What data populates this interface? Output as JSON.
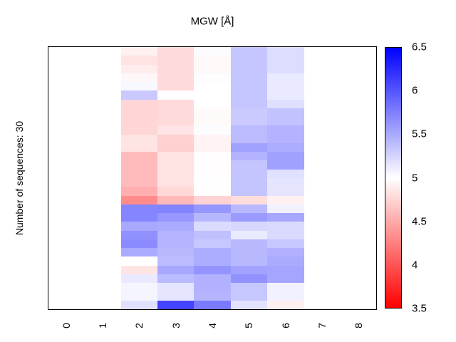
{
  "title": "MGW [Å]",
  "y_axis_label": "Number of sequences: 30",
  "x_axis": {
    "tick_labels": [
      "0",
      "1",
      "2",
      "3",
      "4",
      "5",
      "6",
      "7",
      "8"
    ]
  },
  "colorbar": {
    "tick_labels": [
      "6.5",
      "6",
      "5.5",
      "5",
      "4.5",
      "4",
      "3.5"
    ],
    "top_color": "#0000ff",
    "mid_color": "#ffffff",
    "bottom_color": "#ff0000",
    "vmax": 6.5,
    "vmin": 3.5
  },
  "chart_data": {
    "type": "heatmap",
    "title": "MGW [Å]",
    "ylabel": "Number of sequences: 30",
    "x_categories": [
      "0",
      "1",
      "2",
      "3",
      "4",
      "5",
      "6",
      "7",
      "8"
    ],
    "n_rows": 30,
    "value_scale": {
      "min": 3.5,
      "mid": 5.0,
      "max": 6.5
    },
    "colormap": "red-white-blue",
    "legend_position": "right-colorbar",
    "grid": false,
    "values": [
      [
        null,
        null,
        4.92,
        4.78,
        5.02,
        5.34,
        5.2,
        null,
        null
      ],
      [
        null,
        null,
        4.83,
        4.78,
        4.96,
        5.34,
        5.2,
        null,
        null
      ],
      [
        null,
        null,
        4.89,
        4.78,
        4.96,
        5.34,
        5.2,
        null,
        null
      ],
      [
        null,
        null,
        4.95,
        4.78,
        5.01,
        5.34,
        5.13,
        null,
        null
      ],
      [
        null,
        null,
        5.04,
        4.78,
        5.0,
        5.34,
        5.13,
        null,
        null
      ],
      [
        null,
        null,
        5.32,
        4.99,
        5.0,
        5.34,
        5.13,
        null,
        null
      ],
      [
        null,
        null,
        4.75,
        4.78,
        5.0,
        5.34,
        5.19,
        null,
        null
      ],
      [
        null,
        null,
        4.75,
        4.78,
        4.97,
        5.31,
        5.36,
        null,
        null
      ],
      [
        null,
        null,
        4.75,
        4.78,
        4.97,
        5.31,
        5.36,
        null,
        null
      ],
      [
        null,
        null,
        4.76,
        4.85,
        5.02,
        5.4,
        5.45,
        null,
        null
      ],
      [
        null,
        null,
        4.84,
        4.73,
        4.93,
        5.4,
        5.45,
        null,
        null
      ],
      [
        null,
        null,
        4.84,
        4.71,
        4.93,
        5.56,
        5.48,
        null,
        null
      ],
      [
        null,
        null,
        4.6,
        4.83,
        4.99,
        5.45,
        5.56,
        null,
        null
      ],
      [
        null,
        null,
        4.6,
        4.83,
        4.99,
        5.35,
        5.56,
        null,
        null
      ],
      [
        null,
        null,
        4.6,
        4.83,
        4.99,
        5.35,
        5.18,
        null,
        null
      ],
      [
        null,
        null,
        4.6,
        4.83,
        5.0,
        5.35,
        5.15,
        null,
        null
      ],
      [
        null,
        null,
        4.53,
        4.77,
        4.99,
        5.35,
        5.15,
        null,
        null
      ],
      [
        null,
        null,
        4.32,
        4.59,
        4.74,
        4.8,
        4.92,
        null,
        null
      ],
      [
        null,
        null,
        5.72,
        5.73,
        5.62,
        5.42,
        5.08,
        null,
        null
      ],
      [
        null,
        null,
        5.72,
        5.61,
        5.43,
        5.59,
        5.52,
        null,
        null
      ],
      [
        null,
        null,
        5.51,
        5.5,
        5.21,
        5.23,
        5.22,
        null,
        null
      ],
      [
        null,
        null,
        5.65,
        5.44,
        5.37,
        5.12,
        5.22,
        null,
        null
      ],
      [
        null,
        null,
        5.68,
        5.44,
        5.33,
        5.42,
        5.33,
        null,
        null
      ],
      [
        null,
        null,
        5.5,
        5.42,
        5.48,
        5.42,
        5.46,
        null,
        null
      ],
      [
        null,
        null,
        5.0,
        5.4,
        5.48,
        5.42,
        5.5,
        null,
        null
      ],
      [
        null,
        null,
        4.84,
        5.52,
        5.63,
        5.54,
        5.53,
        null,
        null
      ],
      [
        null,
        null,
        5.13,
        5.4,
        5.46,
        5.64,
        5.53,
        null,
        null
      ],
      [
        null,
        null,
        5.06,
        5.15,
        5.46,
        5.33,
        5.08,
        null,
        null
      ],
      [
        null,
        null,
        5.06,
        5.15,
        5.44,
        5.33,
        5.08,
        null,
        null
      ],
      [
        null,
        null,
        5.18,
        6.1,
        5.78,
        5.17,
        4.91,
        null,
        null
      ]
    ]
  }
}
